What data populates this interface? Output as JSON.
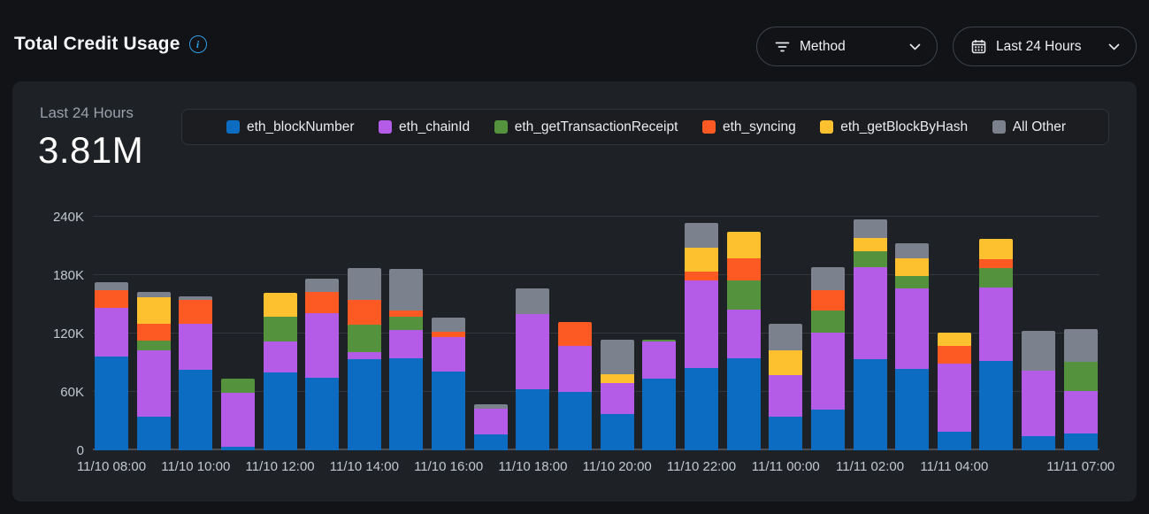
{
  "header": {
    "title": "Total Credit Usage",
    "method_filter_label": "Method",
    "range_filter_label": "Last 24 Hours"
  },
  "summary": {
    "period_label": "Last 24 Hours",
    "total_value": "3.81M"
  },
  "colors": {
    "page_bg": "#121316",
    "card_bg": "#1e2126",
    "legend_bg": "#1b1d21",
    "legend_border": "#303439",
    "grid": "#33373d",
    "baseline": "#4a4f57",
    "text_primary": "#f4f6f8",
    "text_secondary": "#9aa1ab",
    "axis_text": "#c3c8d0",
    "info_blue": "#2f9ee5",
    "pill_border": "#3d434c"
  },
  "chart_data": {
    "type": "bar",
    "stacked": true,
    "title": "Total Credit Usage - Last 24 Hours",
    "ylim": [
      0,
      240000
    ],
    "grid": true,
    "legend_position": "top",
    "yticks": [
      {
        "v": 0,
        "label": "0"
      },
      {
        "v": 60000,
        "label": "60K"
      },
      {
        "v": 120000,
        "label": "120K"
      },
      {
        "v": 180000,
        "label": "180K"
      },
      {
        "v": 240000,
        "label": "240K"
      }
    ],
    "x": [
      "11/10 08:00",
      "11/10 09:00",
      "11/10 10:00",
      "11/10 11:00",
      "11/10 12:00",
      "11/10 13:00",
      "11/10 14:00",
      "11/10 15:00",
      "11/10 16:00",
      "11/10 17:00",
      "11/10 18:00",
      "11/10 19:00",
      "11/10 20:00",
      "11/10 21:00",
      "11/10 22:00",
      "11/10 23:00",
      "11/11 00:00",
      "11/11 01:00",
      "11/11 02:00",
      "11/11 03:00",
      "11/11 04:00",
      "11/11 05:00",
      "11/11 06:00",
      "11/11 07:00"
    ],
    "x_ticks": [
      {
        "i": 0,
        "label": "11/10 08:00"
      },
      {
        "i": 2,
        "label": "11/10 10:00"
      },
      {
        "i": 4,
        "label": "11/10 12:00"
      },
      {
        "i": 6,
        "label": "11/10 14:00"
      },
      {
        "i": 8,
        "label": "11/10 16:00"
      },
      {
        "i": 10,
        "label": "11/10 18:00"
      },
      {
        "i": 12,
        "label": "11/10 20:00"
      },
      {
        "i": 14,
        "label": "11/10 22:00"
      },
      {
        "i": 16,
        "label": "11/11 00:00"
      },
      {
        "i": 18,
        "label": "11/11 02:00"
      },
      {
        "i": 20,
        "label": "11/11 04:00"
      },
      {
        "i": 23,
        "label": "11/11 07:00"
      }
    ],
    "series": [
      {
        "name": "eth_blockNumber",
        "color": "#0b6cc1",
        "values": [
          96000,
          35000,
          83000,
          4000,
          80000,
          75000,
          94000,
          95000,
          81000,
          16000,
          63000,
          60000,
          37000,
          74000,
          85000,
          95000,
          35000,
          42000,
          94000,
          84000,
          19000,
          92000,
          15000,
          17000
        ]
      },
      {
        "name": "eth_chainId",
        "color": "#b45be8",
        "values": [
          50000,
          68000,
          47000,
          55000,
          32000,
          66000,
          7000,
          29000,
          35000,
          27000,
          77000,
          47000,
          32000,
          38000,
          90000,
          50000,
          42000,
          79000,
          94000,
          82000,
          70000,
          75000,
          67000,
          44000
        ]
      },
      {
        "name": "eth_getTransactionReceipt",
        "color": "#55923e",
        "values": [
          0,
          10000,
          0,
          15000,
          25000,
          0,
          28000,
          13000,
          0,
          0,
          0,
          0,
          0,
          2000,
          0,
          30000,
          0,
          23000,
          17000,
          13000,
          0,
          20000,
          0,
          30000
        ]
      },
      {
        "name": "eth_syncing",
        "color": "#fc5a22",
        "values": [
          19000,
          17000,
          25000,
          0,
          0,
          22000,
          26000,
          7000,
          6000,
          0,
          0,
          25000,
          0,
          0,
          9000,
          22000,
          0,
          21000,
          0,
          0,
          18000,
          9000,
          0,
          0
        ]
      },
      {
        "name": "eth_getBlockByHash",
        "color": "#fdc12f",
        "values": [
          0,
          27000,
          0,
          0,
          25000,
          0,
          0,
          0,
          0,
          0,
          0,
          0,
          9000,
          0,
          24000,
          28000,
          26000,
          0,
          13000,
          18000,
          14000,
          21000,
          0,
          0
        ]
      },
      {
        "name": "All Other",
        "color": "#7b828e",
        "values": [
          8000,
          6000,
          3000,
          0,
          0,
          13000,
          32000,
          42000,
          14000,
          4000,
          26000,
          0,
          36000,
          0,
          26000,
          0,
          27000,
          23000,
          19000,
          16000,
          0,
          0,
          41000,
          34000
        ]
      }
    ]
  }
}
